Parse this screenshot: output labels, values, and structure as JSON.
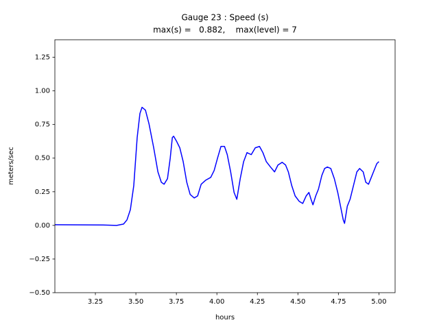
{
  "chart_data": {
    "type": "line",
    "title": [
      "Gauge 23 : Speed (s)",
      "max(s) =   0.882,    max(level) = 7"
    ],
    "x_label": "hours",
    "y_label": "meters/sec",
    "x": [
      3.0,
      3.297,
      3.381,
      3.424,
      3.445,
      3.466,
      3.487,
      3.508,
      3.525,
      3.538,
      3.559,
      3.581,
      3.61,
      3.636,
      3.657,
      3.674,
      3.695,
      3.712,
      3.725,
      3.733,
      3.75,
      3.771,
      3.792,
      3.814,
      3.835,
      3.86,
      3.881,
      3.903,
      3.932,
      3.962,
      3.983,
      4.004,
      4.025,
      4.047,
      4.064,
      4.085,
      4.106,
      4.123,
      4.144,
      4.165,
      4.186,
      4.212,
      4.237,
      4.263,
      4.284,
      4.305,
      4.331,
      4.356,
      4.377,
      4.403,
      4.424,
      4.441,
      4.462,
      4.483,
      4.508,
      4.53,
      4.551,
      4.568,
      4.581,
      4.593,
      4.61,
      4.627,
      4.648,
      4.665,
      4.682,
      4.703,
      4.725,
      4.746,
      4.763,
      4.78,
      4.788,
      4.805,
      4.822,
      4.843,
      4.864,
      4.881,
      4.903,
      4.919,
      4.936,
      4.953,
      4.97,
      4.987,
      5.0
    ],
    "series": [
      {
        "name": "s",
        "color": "#0000ff",
        "values": [
          0.005,
          0.003,
          0.0,
          0.01,
          0.041,
          0.117,
          0.296,
          0.653,
          0.832,
          0.878,
          0.857,
          0.755,
          0.577,
          0.398,
          0.321,
          0.306,
          0.347,
          0.5,
          0.653,
          0.663,
          0.628,
          0.577,
          0.474,
          0.321,
          0.23,
          0.204,
          0.219,
          0.306,
          0.337,
          0.357,
          0.408,
          0.5,
          0.587,
          0.587,
          0.526,
          0.398,
          0.245,
          0.194,
          0.347,
          0.474,
          0.541,
          0.526,
          0.577,
          0.587,
          0.541,
          0.474,
          0.434,
          0.398,
          0.449,
          0.469,
          0.449,
          0.398,
          0.296,
          0.219,
          0.179,
          0.163,
          0.219,
          0.245,
          0.194,
          0.153,
          0.219,
          0.27,
          0.372,
          0.423,
          0.434,
          0.423,
          0.347,
          0.245,
          0.143,
          0.041,
          0.015,
          0.143,
          0.194,
          0.296,
          0.398,
          0.423,
          0.398,
          0.321,
          0.306,
          0.357,
          0.408,
          0.459,
          0.474
        ]
      }
    ],
    "xlim": [
      3.0,
      5.1
    ],
    "xticks": [
      {
        "value": 3.25,
        "label": "3.25"
      },
      {
        "value": 3.5,
        "label": "3.50"
      },
      {
        "value": 3.75,
        "label": "3.75"
      },
      {
        "value": 4.0,
        "label": "4.00"
      },
      {
        "value": 4.25,
        "label": "4.25"
      },
      {
        "value": 4.5,
        "label": "4.50"
      },
      {
        "value": 4.75,
        "label": "4.75"
      },
      {
        "value": 5.0,
        "label": "5.00"
      }
    ],
    "ylim": [
      -0.5,
      1.38
    ],
    "yticks": [
      {
        "value": -0.5,
        "label": "−0.50"
      },
      {
        "value": -0.25,
        "label": "−0.25"
      },
      {
        "value": 0,
        "label": "0.00"
      },
      {
        "value": 0.25,
        "label": "0.25"
      },
      {
        "value": 0.5,
        "label": "0.50"
      },
      {
        "value": 0.75,
        "label": "0.75"
      },
      {
        "value": 1.0,
        "label": "1.00"
      },
      {
        "value": 1.25,
        "label": "1.25"
      }
    ],
    "grid": false
  }
}
